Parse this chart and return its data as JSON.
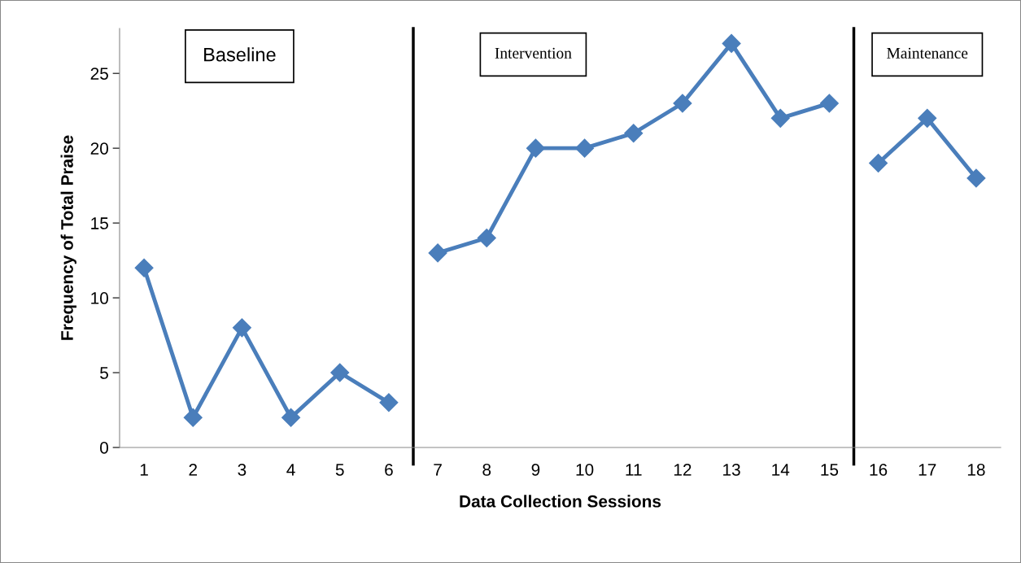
{
  "chart_data": {
    "type": "line",
    "xlabel": "Data Collection Sessions",
    "ylabel": "Frequency of Total Praise",
    "annotations": [
      "Baseline",
      "Intervention",
      "Maintenance"
    ],
    "series": [
      {
        "color": "#4a7ebb",
        "x": [
          1,
          2,
          3,
          4,
          5,
          6
        ],
        "values": [
          12,
          2,
          8,
          2,
          5,
          3
        ]
      },
      {
        "color": "#4a7ebb",
        "x": [
          7,
          8,
          9,
          10,
          11,
          12,
          13,
          14,
          15
        ],
        "values": [
          13,
          14,
          20,
          20,
          21,
          23,
          27,
          22,
          23
        ]
      },
      {
        "color": "#4a7ebb",
        "x": [
          16,
          17,
          18
        ],
        "values": [
          19,
          22,
          18
        ]
      }
    ],
    "xlim": [
      0.5,
      18.5
    ],
    "xticks": [
      1,
      2,
      3,
      4,
      5,
      6,
      7,
      8,
      9,
      10,
      11,
      12,
      13,
      14,
      15,
      16,
      17,
      18
    ],
    "ylim": [
      0,
      28
    ],
    "yticks": [
      0,
      5,
      10,
      15,
      20,
      25
    ],
    "ref_lines": [
      {
        "axis": "x",
        "value": 6.5,
        "color": "#000000"
      },
      {
        "axis": "x",
        "value": 15.5,
        "color": "#000000"
      }
    ],
    "marker": "diamond",
    "line_style": "solid"
  }
}
